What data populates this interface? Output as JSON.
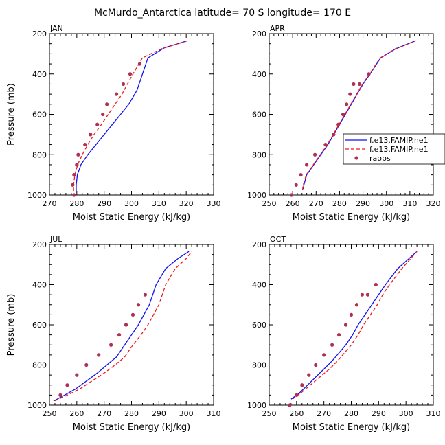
{
  "figure": {
    "title": "McMurdo_Antarctica  latitude= 70 S longitude= 170 E"
  },
  "legend": {
    "panel": "APR",
    "entries": [
      {
        "label": "f.e13.FAMIP.ne1",
        "style": "solid",
        "color": "#1010f0"
      },
      {
        "label": "f.e13.FAMIP.ne1",
        "style": "dashed",
        "color": "#f01818"
      },
      {
        "label": "raobs",
        "style": "marker",
        "color": "#b03050"
      }
    ]
  },
  "colors": {
    "model1": "#1010f0",
    "model2": "#f01818",
    "obs": "#b03050"
  },
  "chart_data": [
    {
      "type": "line",
      "panel": "JAN",
      "xlabel": "Moist Static Energy (kJ/kg)",
      "ylabel": "Pressure (mb)",
      "xlim": [
        270,
        330
      ],
      "ylim": [
        1000,
        200
      ],
      "xticks": [
        270,
        280,
        290,
        300,
        310,
        320,
        330
      ],
      "yticks": [
        200,
        400,
        600,
        800,
        1000
      ],
      "series": [
        {
          "name": "f.e13.FAMIP.ne1",
          "style": "solid",
          "color": "#1010f0",
          "x": [
            279.8,
            279.8,
            280.2,
            281.5,
            284,
            287,
            290,
            293,
            296,
            299,
            302,
            306,
            312,
            320.5
          ],
          "y": [
            980,
            950,
            900,
            850,
            800,
            750,
            700,
            650,
            600,
            550,
            480,
            320,
            270,
            235
          ]
        },
        {
          "name": "f.e13.FAMIP.ne1",
          "style": "dashed",
          "color": "#f01818",
          "x": [
            278.8,
            278.8,
            279.3,
            280.3,
            282,
            284,
            286.3,
            289,
            291.5,
            294,
            296.5,
            300.5,
            304,
            311,
            320.5
          ],
          "y": [
            980,
            950,
            900,
            850,
            800,
            750,
            700,
            650,
            600,
            550,
            500,
            400,
            320,
            275,
            235
          ]
        },
        {
          "name": "raobs",
          "style": "marker",
          "color": "#b03050",
          "x": [
            279,
            278.5,
            279,
            280,
            280.5,
            283,
            285,
            287.5,
            289.5,
            291,
            294.5,
            297,
            299.5,
            303
          ],
          "y": [
            1000,
            950,
            900,
            850,
            800,
            750,
            700,
            650,
            600,
            550,
            500,
            450,
            400,
            350
          ]
        }
      ]
    },
    {
      "type": "line",
      "panel": "APR",
      "xlabel": "Moist Static Energy (kJ/kg)",
      "ylabel": "",
      "xlim": [
        250,
        320
      ],
      "ylim": [
        1000,
        200
      ],
      "xticks": [
        250,
        260,
        270,
        280,
        290,
        300,
        310,
        320
      ],
      "yticks": [
        200,
        400,
        600,
        800,
        1000
      ],
      "series": [
        {
          "name": "f.e13.FAMIP.ne1",
          "style": "solid",
          "color": "#1010f0",
          "x": [
            264.5,
            264.8,
            266,
            269,
            272,
            275,
            277.5,
            280,
            282.5,
            285,
            287.5,
            290,
            293,
            297.5,
            304,
            312.5
          ],
          "y": [
            970,
            950,
            900,
            850,
            800,
            750,
            700,
            650,
            600,
            550,
            500,
            450,
            400,
            320,
            275,
            235
          ]
        },
        {
          "name": "f.e13.FAMIP.ne1",
          "style": "dashed",
          "color": "#f01818",
          "x": [
            264.2,
            264.5,
            265.8,
            268.8,
            271.8,
            274.8,
            277.3,
            279.8,
            282.3,
            284.8,
            287.3,
            289.8,
            292.8,
            297.3,
            303.8,
            312.5
          ],
          "y": [
            975,
            950,
            900,
            850,
            800,
            750,
            700,
            650,
            600,
            550,
            500,
            450,
            400,
            320,
            275,
            235
          ]
        },
        {
          "name": "raobs",
          "style": "marker",
          "color": "#b03050",
          "x": [
            259.5,
            261.5,
            263.5,
            266,
            269.5,
            274,
            277.5,
            279.5,
            281.5,
            283,
            284.5,
            286,
            288.5,
            292.5
          ],
          "y": [
            1000,
            950,
            900,
            850,
            800,
            750,
            700,
            650,
            600,
            550,
            500,
            450,
            450,
            400
          ]
        }
      ]
    },
    {
      "type": "line",
      "panel": "JUL",
      "xlabel": "Moist Static Energy (kJ/kg)",
      "ylabel": "Pressure (mb)",
      "xlim": [
        250,
        310
      ],
      "ylim": [
        1000,
        200
      ],
      "xticks": [
        250,
        260,
        270,
        280,
        290,
        300,
        310
      ],
      "yticks": [
        200,
        400,
        600,
        800,
        1000
      ],
      "series": [
        {
          "name": "f.e13.FAMIP.ne1",
          "style": "solid",
          "color": "#1010f0",
          "x": [
            251.5,
            255.5,
            259.5,
            263.5,
            267.5,
            271,
            274.5,
            277.5,
            280,
            282.5,
            284.5,
            286.5,
            289,
            292.5,
            297,
            301
          ],
          "y": [
            980,
            950,
            920,
            880,
            840,
            800,
            760,
            700,
            650,
            600,
            550,
            500,
            400,
            320,
            270,
            235
          ]
        },
        {
          "name": "f.e13.FAMIP.ne1",
          "style": "dashed",
          "color": "#f01818",
          "x": [
            252,
            256.5,
            261,
            265.5,
            270,
            274,
            277.5,
            280.5,
            283.5,
            286,
            288,
            290,
            292.5,
            296,
            300,
            302
          ],
          "y": [
            978,
            950,
            920,
            880,
            840,
            800,
            760,
            700,
            650,
            600,
            550,
            500,
            400,
            320,
            270,
            235
          ]
        },
        {
          "name": "raobs",
          "style": "marker",
          "color": "#b03050",
          "x": [
            254,
            256.5,
            260,
            263.5,
            268,
            272.5,
            275.5,
            278,
            280.5,
            282.5,
            285
          ],
          "y": [
            950,
            900,
            850,
            800,
            750,
            700,
            650,
            600,
            550,
            500,
            450
          ]
        }
      ]
    },
    {
      "type": "line",
      "panel": "OCT",
      "xlabel": "Moist Static Energy (kJ/kg)",
      "ylabel": "",
      "xlim": [
        250,
        310
      ],
      "ylim": [
        1000,
        200
      ],
      "xticks": [
        250,
        260,
        270,
        280,
        290,
        300,
        310
      ],
      "yticks": [
        200,
        400,
        600,
        800,
        1000
      ],
      "series": [
        {
          "name": "f.e13.FAMIP.ne1",
          "style": "solid",
          "color": "#1010f0",
          "x": [
            258,
            261,
            264,
            267,
            270,
            273,
            275.5,
            278,
            280.5,
            282.5,
            285,
            287.5,
            290,
            292.5,
            297,
            304
          ],
          "y": [
            970,
            940,
            900,
            860,
            820,
            780,
            740,
            700,
            650,
            600,
            550,
            500,
            450,
            400,
            320,
            235
          ]
        },
        {
          "name": "f.e13.FAMIP.ne1",
          "style": "dashed",
          "color": "#f01818",
          "x": [
            258.5,
            261.5,
            265,
            268.5,
            272,
            275,
            277.5,
            280,
            282.5,
            284.5,
            287,
            289.5,
            291.5,
            294,
            298.5,
            304
          ],
          "y": [
            970,
            940,
            900,
            860,
            820,
            780,
            740,
            700,
            650,
            600,
            550,
            500,
            450,
            400,
            320,
            235
          ]
        },
        {
          "name": "raobs",
          "style": "marker",
          "color": "#b03050",
          "x": [
            257.5,
            260,
            262,
            264.5,
            267,
            270,
            273,
            275.5,
            278,
            280,
            282,
            284,
            286,
            289
          ],
          "y": [
            1000,
            950,
            900,
            850,
            800,
            750,
            700,
            650,
            600,
            550,
            500,
            450,
            450,
            400
          ]
        }
      ]
    }
  ]
}
